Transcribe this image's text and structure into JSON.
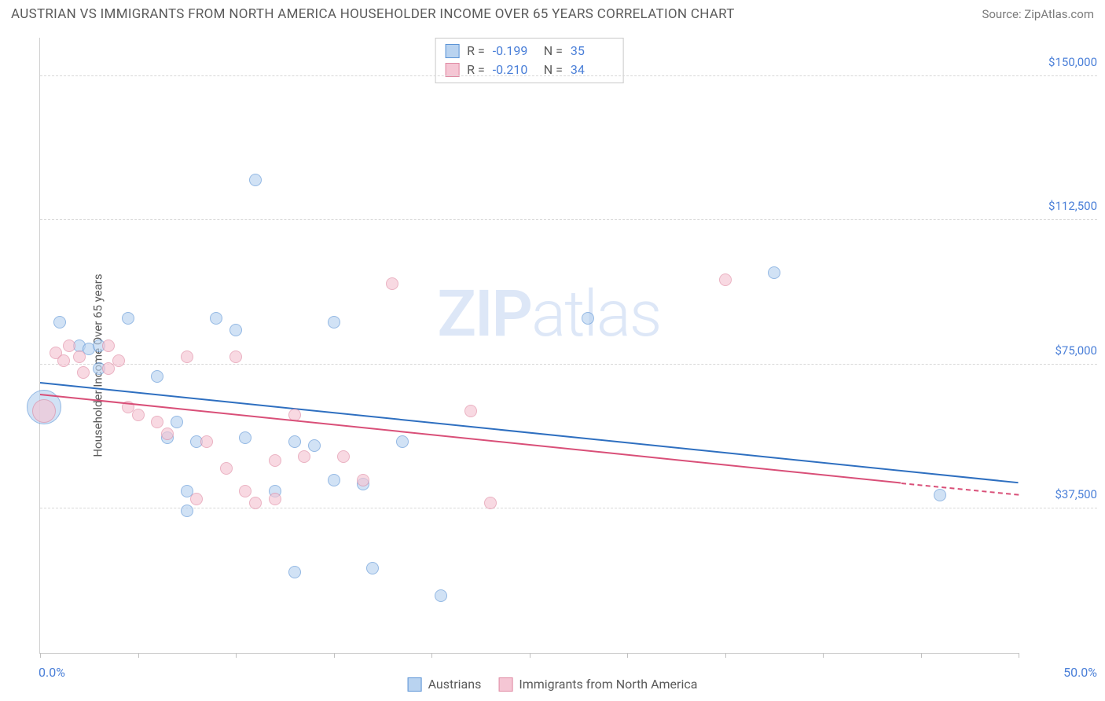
{
  "title": "AUSTRIAN VS IMMIGRANTS FROM NORTH AMERICA HOUSEHOLDER INCOME OVER 65 YEARS CORRELATION CHART",
  "source": "Source: ZipAtlas.com",
  "ylabel": "Householder Income Over 65 years",
  "watermark_a": "ZIP",
  "watermark_b": "atlas",
  "chart": {
    "type": "scatter",
    "background_color": "#ffffff",
    "grid_color": "#d8d8d8",
    "axis_color": "#d0d0d0",
    "tick_label_color": "#4a7fd8",
    "axis_label_color": "#5a5a5a",
    "title_color": "#5a5a5a",
    "title_fontsize": 17,
    "label_fontsize": 15,
    "xlim": [
      0,
      50
    ],
    "ylim": [
      0,
      160000
    ],
    "yticks": [
      37500,
      75000,
      112500,
      150000
    ],
    "ytick_labels": [
      "$37,500",
      "$75,000",
      "$112,500",
      "$150,000"
    ],
    "xticks": [
      0,
      5,
      10,
      15,
      20,
      25,
      30,
      35,
      40,
      45,
      50
    ],
    "xlabel_min": "0.0%",
    "xlabel_max": "50.0%",
    "marker_radius": 8,
    "series": [
      {
        "key": "austrians",
        "label": "Austrians",
        "fill": "#b9d3f0",
        "stroke": "#5c94d6",
        "fill_opacity": 0.65,
        "trend_color": "#2e6fc0",
        "R": "-0.199",
        "N": "35",
        "trend": {
          "x1": 0,
          "y1": 70000,
          "x2": 50,
          "y2": 44000
        },
        "points": [
          {
            "x": 0.2,
            "y": 64000,
            "r": 22
          },
          {
            "x": 1.0,
            "y": 86000
          },
          {
            "x": 2.0,
            "y": 80000
          },
          {
            "x": 2.5,
            "y": 79000
          },
          {
            "x": 3.0,
            "y": 80000
          },
          {
            "x": 3.0,
            "y": 74000
          },
          {
            "x": 4.5,
            "y": 87000
          },
          {
            "x": 6.0,
            "y": 72000
          },
          {
            "x": 6.5,
            "y": 56000
          },
          {
            "x": 7.0,
            "y": 60000
          },
          {
            "x": 7.5,
            "y": 42000
          },
          {
            "x": 7.5,
            "y": 37000
          },
          {
            "x": 8.0,
            "y": 55000
          },
          {
            "x": 9.0,
            "y": 87000
          },
          {
            "x": 10.0,
            "y": 84000
          },
          {
            "x": 10.5,
            "y": 56000
          },
          {
            "x": 11.0,
            "y": 123000
          },
          {
            "x": 12.0,
            "y": 42000
          },
          {
            "x": 13.0,
            "y": 55000
          },
          {
            "x": 13.0,
            "y": 21000
          },
          {
            "x": 14.0,
            "y": 54000
          },
          {
            "x": 15.0,
            "y": 86000
          },
          {
            "x": 15.0,
            "y": 45000
          },
          {
            "x": 16.5,
            "y": 44000
          },
          {
            "x": 17.0,
            "y": 22000
          },
          {
            "x": 18.5,
            "y": 55000
          },
          {
            "x": 20.5,
            "y": 15000
          },
          {
            "x": 28.0,
            "y": 87000
          },
          {
            "x": 37.5,
            "y": 99000
          },
          {
            "x": 46.0,
            "y": 41000
          }
        ]
      },
      {
        "key": "immigrants",
        "label": "Immigrants from North America",
        "fill": "#f5c6d4",
        "stroke": "#e08aa3",
        "fill_opacity": 0.65,
        "trend_color": "#d94f78",
        "R": "-0.210",
        "N": "34",
        "trend": {
          "x1": 0,
          "y1": 67000,
          "x2": 44,
          "y2": 44000
        },
        "trend_dash": {
          "x1": 44,
          "y1": 44000,
          "x2": 50,
          "y2": 41000
        },
        "points": [
          {
            "x": 0.2,
            "y": 63000,
            "r": 15
          },
          {
            "x": 0.8,
            "y": 78000
          },
          {
            "x": 1.2,
            "y": 76000
          },
          {
            "x": 1.5,
            "y": 80000
          },
          {
            "x": 2.0,
            "y": 77000
          },
          {
            "x": 2.2,
            "y": 73000
          },
          {
            "x": 3.5,
            "y": 80000
          },
          {
            "x": 3.5,
            "y": 74000
          },
          {
            "x": 4.0,
            "y": 76000
          },
          {
            "x": 4.5,
            "y": 64000
          },
          {
            "x": 5.0,
            "y": 62000
          },
          {
            "x": 6.0,
            "y": 60000
          },
          {
            "x": 6.5,
            "y": 57000
          },
          {
            "x": 7.5,
            "y": 77000
          },
          {
            "x": 8.0,
            "y": 40000
          },
          {
            "x": 8.5,
            "y": 55000
          },
          {
            "x": 9.5,
            "y": 48000
          },
          {
            "x": 10.0,
            "y": 77000
          },
          {
            "x": 10.5,
            "y": 42000
          },
          {
            "x": 11.0,
            "y": 39000
          },
          {
            "x": 12.0,
            "y": 50000
          },
          {
            "x": 12.0,
            "y": 40000
          },
          {
            "x": 13.0,
            "y": 62000
          },
          {
            "x": 13.5,
            "y": 51000
          },
          {
            "x": 15.5,
            "y": 51000
          },
          {
            "x": 16.5,
            "y": 45000
          },
          {
            "x": 18.0,
            "y": 96000
          },
          {
            "x": 22.0,
            "y": 63000
          },
          {
            "x": 23.0,
            "y": 39000
          },
          {
            "x": 35.0,
            "y": 97000
          }
        ]
      }
    ]
  }
}
